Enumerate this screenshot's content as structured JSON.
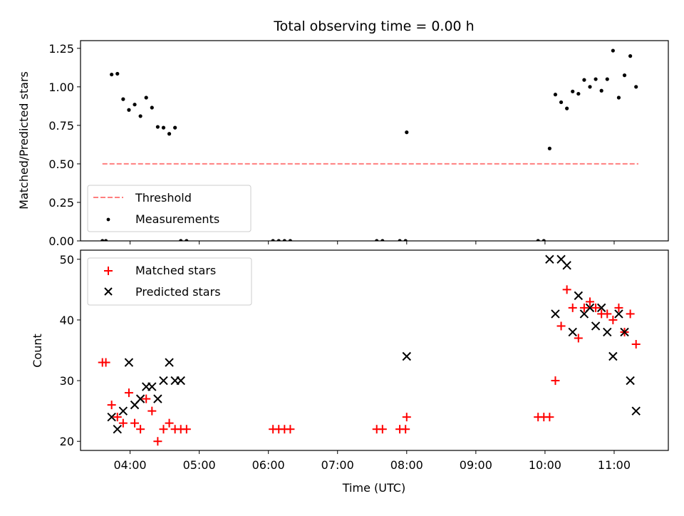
{
  "chart_data": [
    {
      "type": "scatter",
      "title": "Total observing time = 0.00 h",
      "xlabel": "",
      "ylabel": "Matched/Predicted stars",
      "xlim": [
        "03:17",
        "11:47"
      ],
      "ylim": [
        0,
        1.3
      ],
      "yticks": [
        "0.00",
        "0.25",
        "0.50",
        "0.75",
        "1.00",
        "1.25"
      ],
      "legend": "lower-left",
      "series": [
        {
          "name": "Threshold",
          "style": "dashed-line",
          "color": "#ff7f7f",
          "x": [
            "03:36",
            "11:21"
          ],
          "y": [
            0.5,
            0.5
          ]
        },
        {
          "name": "Measurements",
          "style": "dot",
          "color": "#000000",
          "x": [
            "03:36",
            "03:39",
            "03:44",
            "03:49",
            "03:54",
            "03:59",
            "04:04",
            "04:09",
            "04:14",
            "04:19",
            "04:24",
            "04:29",
            "04:34",
            "04:39",
            "04:44",
            "04:49",
            "06:04",
            "06:09",
            "06:14",
            "06:19",
            "07:34",
            "07:39",
            "07:54",
            "07:59",
            "08:00",
            "09:54",
            "09:59",
            "10:04",
            "10:09",
            "10:14",
            "10:19",
            "10:24",
            "10:29",
            "10:34",
            "10:39",
            "10:44",
            "10:49",
            "10:54",
            "10:59",
            "11:04",
            "11:09",
            "11:14",
            "11:19"
          ],
          "y": [
            0,
            0,
            1.08,
            1.085,
            0.92,
            0.85,
            0.885,
            0.81,
            0.93,
            0.865,
            0.74,
            0.735,
            0.695,
            0.735,
            0,
            0,
            0,
            0,
            0,
            0,
            0,
            0,
            0,
            0,
            0.705,
            0,
            0,
            0.6,
            0.95,
            0.9,
            0.86,
            0.97,
            0.955,
            1.045,
            1.0,
            1.05,
            0.975,
            1.05,
            1.235,
            0.93,
            1.075,
            1.2,
            1.0
          ]
        }
      ]
    },
    {
      "type": "scatter",
      "title": "",
      "xlabel": "Time (UTC)",
      "ylabel": "Count",
      "xlim": [
        "03:17",
        "11:47"
      ],
      "ylim": [
        18.5,
        51.5
      ],
      "yticks": [
        "20",
        "30",
        "40",
        "50"
      ],
      "xticks": [
        "04:00",
        "05:00",
        "06:00",
        "07:00",
        "08:00",
        "09:00",
        "10:00",
        "11:00"
      ],
      "legend": "upper-left",
      "series": [
        {
          "name": "Matched stars",
          "style": "plus",
          "color": "#ff0000",
          "x": [
            "03:36",
            "03:39",
            "03:44",
            "03:49",
            "03:54",
            "03:59",
            "04:04",
            "04:09",
            "04:14",
            "04:19",
            "04:24",
            "04:29",
            "04:34",
            "04:39",
            "04:44",
            "04:49",
            "06:04",
            "06:09",
            "06:14",
            "06:19",
            "07:34",
            "07:39",
            "07:54",
            "07:59",
            "08:00",
            "09:54",
            "09:59",
            "10:04",
            "10:09",
            "10:14",
            "10:19",
            "10:24",
            "10:29",
            "10:34",
            "10:39",
            "10:44",
            "10:49",
            "10:54",
            "10:59",
            "11:04",
            "11:09",
            "11:14",
            "11:19"
          ],
          "y": [
            33,
            33,
            26,
            24,
            23,
            28,
            23,
            22,
            27,
            25,
            20,
            22,
            23,
            22,
            22,
            22,
            22,
            22,
            22,
            22,
            22,
            22,
            22,
            22,
            24,
            24,
            24,
            24,
            30,
            39,
            45,
            42,
            37,
            42,
            43,
            42,
            41,
            41,
            40,
            42,
            38,
            41,
            36
          ]
        },
        {
          "name": "Predicted stars",
          "style": "x",
          "color": "#000000",
          "x": [
            "03:44",
            "03:49",
            "03:54",
            "03:59",
            "04:04",
            "04:09",
            "04:14",
            "04:19",
            "04:24",
            "04:29",
            "04:34",
            "04:39",
            "04:44",
            "08:00",
            "10:04",
            "10:09",
            "10:14",
            "10:19",
            "10:24",
            "10:29",
            "10:34",
            "10:39",
            "10:44",
            "10:49",
            "10:54",
            "10:59",
            "11:04",
            "11:09",
            "11:14",
            "11:19"
          ],
          "y": [
            24,
            22,
            25,
            33,
            26,
            27,
            29,
            29,
            27,
            30,
            33,
            30,
            30,
            34,
            50,
            41,
            50,
            49,
            38,
            44,
            41,
            42,
            39,
            42,
            38,
            34,
            41,
            38,
            30,
            25
          ]
        }
      ]
    }
  ]
}
